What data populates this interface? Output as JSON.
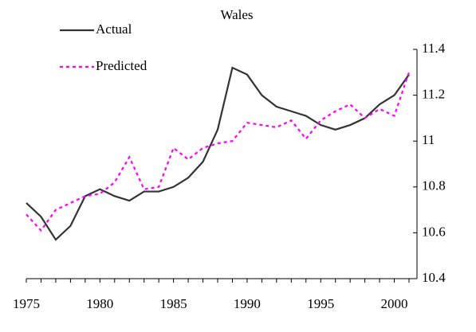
{
  "chart_data": {
    "type": "line",
    "title": "Wales",
    "x": [
      1975,
      1976,
      1977,
      1978,
      1979,
      1980,
      1981,
      1982,
      1983,
      1984,
      1985,
      1986,
      1987,
      1988,
      1989,
      1990,
      1991,
      1992,
      1993,
      1994,
      1995,
      1996,
      1997,
      1998,
      1999,
      2000,
      2001
    ],
    "series": [
      {
        "name": "Actual",
        "color": "#333333",
        "dash": "solid",
        "values": [
          10.73,
          10.67,
          10.57,
          10.63,
          10.76,
          10.79,
          10.76,
          10.74,
          10.78,
          10.78,
          10.8,
          10.84,
          10.91,
          11.05,
          11.32,
          11.29,
          11.2,
          11.15,
          11.13,
          11.11,
          11.07,
          11.05,
          11.07,
          11.1,
          11.16,
          11.2,
          11.29
        ]
      },
      {
        "name": "Predicted",
        "color": "#ff00ff",
        "dash": "dotted",
        "values": [
          10.68,
          10.61,
          10.7,
          10.73,
          10.76,
          10.77,
          10.82,
          10.93,
          10.79,
          10.8,
          10.97,
          10.92,
          10.97,
          10.99,
          11.0,
          11.08,
          11.07,
          11.06,
          11.09,
          11.01,
          11.09,
          11.13,
          11.16,
          11.1,
          11.14,
          11.11,
          11.3
        ]
      }
    ],
    "xlim": [
      1975,
      2001
    ],
    "xticks": [
      1975,
      1980,
      1985,
      1990,
      1995,
      2000
    ],
    "ylim": [
      10.4,
      11.4
    ],
    "yticks": [
      10.4,
      10.6,
      10.8,
      11,
      11.2,
      11.4
    ],
    "y_axis_side": "right",
    "legend": "upper-left",
    "grid": false
  }
}
